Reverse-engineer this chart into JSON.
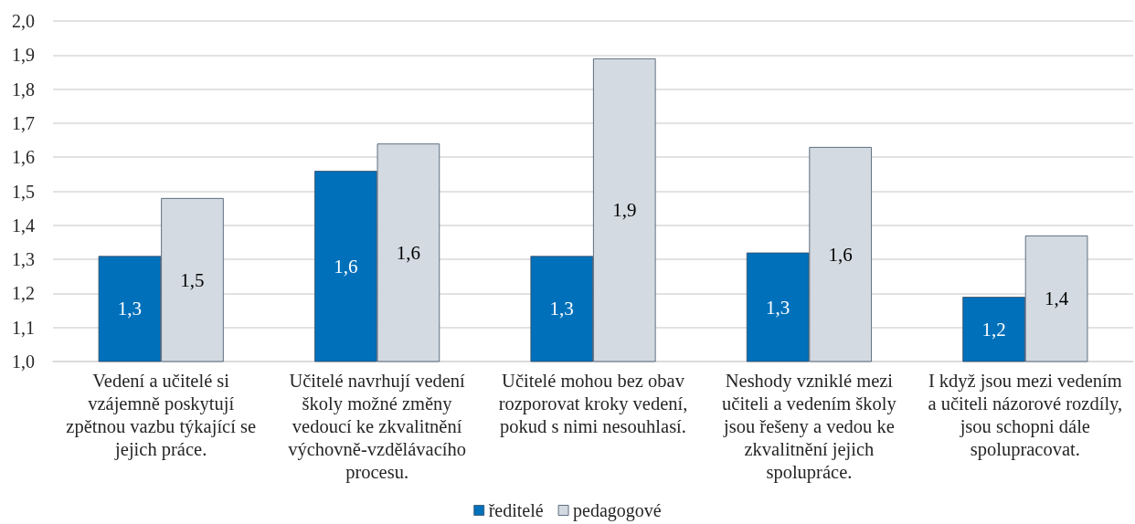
{
  "chart_data": {
    "type": "bar",
    "categories": [
      "Vedení a učitelé si vzájemně poskytují zpětnou vazbu týkající se jejich práce.",
      "Učitelé navrhují vedení školy možné změny vedoucí ke zkvalitnění výchovně-vzdělávacího procesu.",
      "Učitelé mohou bez obav rozporovat kroky vedení, pokud s nimi nesouhlasí.",
      "Neshody vzniklé mezi učiteli a vedením školy jsou řešeny a vedou ke zkvalitnění jejich spolupráce.",
      "I když jsou mezi vedením a učiteli názorové rozdíly, jsou schopni dále spolupracovat."
    ],
    "series": [
      {
        "name": "ředitelé",
        "color": "#0070ba",
        "values": [
          1.31,
          1.56,
          1.31,
          1.32,
          1.19
        ],
        "value_labels": [
          "1,3",
          "1,6",
          "1,3",
          "1,3",
          "1,2"
        ]
      },
      {
        "name": "pedagogové",
        "color": "#d3dae1",
        "values": [
          1.48,
          1.64,
          1.89,
          1.63,
          1.37
        ],
        "value_labels": [
          "1,5",
          "1,6",
          "1,9",
          "1,6",
          "1,4"
        ]
      }
    ],
    "ylim": [
      1,
      2
    ],
    "yticks": [
      {
        "value": 1,
        "label": "1,0"
      },
      {
        "value": 1.1,
        "label": "1,1"
      },
      {
        "value": 1.2,
        "label": "1,2"
      },
      {
        "value": 1.3,
        "label": "1,3"
      },
      {
        "value": 1.4,
        "label": "1,4"
      },
      {
        "value": 1.5,
        "label": "1,5"
      },
      {
        "value": 1.6,
        "label": "1,6"
      },
      {
        "value": 1.7,
        "label": "1,7"
      },
      {
        "value": 1.8,
        "label": "1,8"
      },
      {
        "value": 1.9,
        "label": "1,9"
      },
      {
        "value": 2,
        "label": "2,0"
      }
    ],
    "grid": "y",
    "legend": "bottom"
  }
}
